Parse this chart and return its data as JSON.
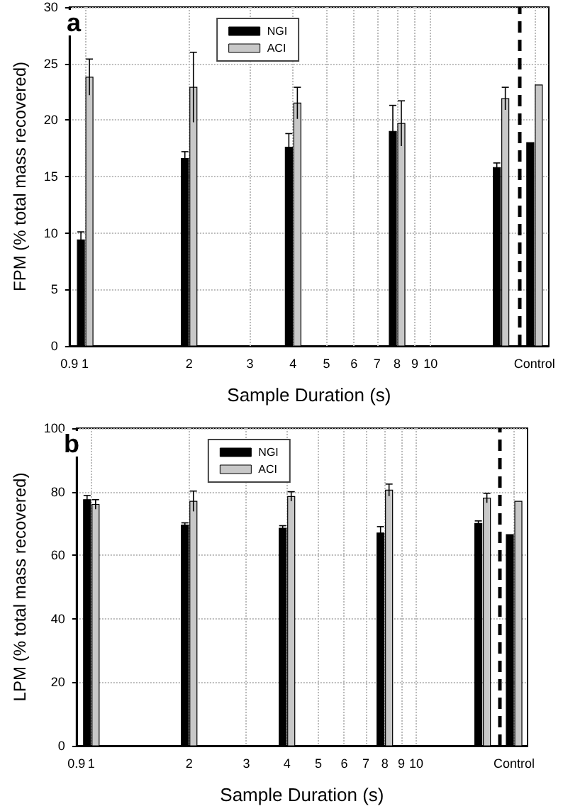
{
  "chart_data": [
    {
      "type": "bar",
      "title": "a",
      "xlabel": "Sample Duration (s)",
      "ylabel": "FPM (% total mass recovered)",
      "log": "x",
      "x": [
        1,
        2,
        4,
        8,
        16,
        20
      ],
      "series": [
        {
          "name": "NGI",
          "color": "#000000",
          "values": [
            9.4,
            16.6,
            17.6,
            19.0,
            15.8,
            18.0
          ],
          "errors": [
            0.7,
            0.6,
            1.2,
            2.3,
            0.4,
            null
          ]
        },
        {
          "name": "ACI",
          "color": "#c8c8c8",
          "values": [
            23.8,
            22.9,
            21.5,
            19.7,
            21.9,
            23.1
          ],
          "errors": [
            1.6,
            3.1,
            1.4,
            2.0,
            1.0,
            null
          ]
        }
      ],
      "xlim": [
        0.9,
        22
      ],
      "xticks": [
        0.9,
        1,
        2,
        3,
        4,
        5,
        6,
        7,
        8,
        9,
        10,
        {
          "value": 20,
          "label": "Control"
        }
      ],
      "ylim": [
        0,
        30
      ],
      "yticks": [
        0,
        5,
        10,
        15,
        20,
        25,
        30
      ],
      "ref_lines": [
        {
          "axis": "x",
          "value": 18,
          "color": "#000000",
          "line_style": "dashed"
        }
      ],
      "grid": true,
      "legend": "top"
    },
    {
      "type": "bar",
      "title": "b",
      "xlabel": "Sample Duration (s)",
      "ylabel": "LPM (% total mass recovered)",
      "log": "x",
      "x": [
        1,
        2,
        4,
        8,
        16,
        20
      ],
      "series": [
        {
          "name": "NGI",
          "color": "#000000",
          "values": [
            77.5,
            69.5,
            68.5,
            67,
            70,
            66.5
          ],
          "errors": [
            1.3,
            0.7,
            0.8,
            2,
            0.8,
            null
          ]
        },
        {
          "name": "ACI",
          "color": "#c8c8c8",
          "values": [
            76,
            77,
            78.5,
            80.5,
            78,
            77
          ],
          "errors": [
            1.5,
            3.2,
            1.5,
            1.9,
            1.5,
            null
          ]
        }
      ],
      "xlim": [
        0.9,
        22
      ],
      "xticks": [
        0.9,
        1,
        2,
        3,
        4,
        5,
        6,
        7,
        8,
        9,
        10,
        {
          "value": 20,
          "label": "Control"
        }
      ],
      "ylim": [
        0,
        100
      ],
      "yticks": [
        0,
        20,
        40,
        60,
        80,
        100
      ],
      "ref_lines": [
        {
          "axis": "x",
          "value": 18,
          "color": "#000000",
          "line_style": "dashed"
        }
      ],
      "grid": true,
      "legend": "top"
    }
  ]
}
